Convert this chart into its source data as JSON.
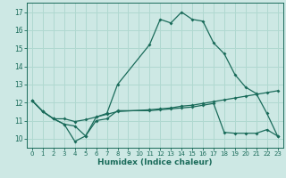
{
  "xlabel": "Humidex (Indice chaleur)",
  "bg_color": "#cde8e4",
  "grid_color": "#b0d8d0",
  "line_color": "#1a6b5a",
  "xlim": [
    -0.5,
    23.5
  ],
  "ylim": [
    9.5,
    17.5
  ],
  "yticks": [
    10,
    11,
    12,
    13,
    14,
    15,
    16,
    17
  ],
  "xticks": [
    0,
    1,
    2,
    3,
    4,
    5,
    6,
    7,
    8,
    9,
    10,
    11,
    12,
    13,
    14,
    15,
    16,
    17,
    18,
    19,
    20,
    21,
    22,
    23
  ],
  "line1_x": [
    0,
    1,
    2,
    3,
    4,
    5,
    6,
    7,
    8,
    11,
    12,
    13,
    14,
    15,
    16,
    17,
    18,
    19,
    20,
    21,
    22,
    23
  ],
  "line1_y": [
    12.1,
    11.5,
    11.1,
    10.8,
    10.7,
    10.15,
    11.2,
    11.4,
    13.0,
    15.2,
    16.6,
    16.4,
    17.0,
    16.6,
    16.5,
    15.3,
    14.7,
    13.55,
    12.85,
    12.5,
    11.4,
    10.15
  ],
  "line2_x": [
    0,
    1,
    2,
    3,
    4,
    5,
    6,
    7,
    8,
    11,
    12,
    13,
    14,
    15,
    16,
    17,
    18,
    19,
    20,
    21,
    22,
    23
  ],
  "line2_y": [
    12.1,
    11.5,
    11.1,
    10.8,
    9.85,
    10.15,
    11.0,
    11.1,
    11.55,
    11.55,
    11.6,
    11.65,
    11.7,
    11.75,
    11.85,
    11.95,
    10.35,
    10.3,
    10.3,
    10.3,
    10.5,
    10.15
  ],
  "line3_x": [
    0,
    1,
    2,
    3,
    4,
    5,
    6,
    7,
    8,
    11,
    12,
    13,
    14,
    15,
    16,
    17,
    18,
    19,
    20,
    21,
    22,
    23
  ],
  "line3_y": [
    12.1,
    11.5,
    11.1,
    11.1,
    10.95,
    11.05,
    11.2,
    11.35,
    11.5,
    11.6,
    11.65,
    11.7,
    11.8,
    11.85,
    11.95,
    12.05,
    12.15,
    12.25,
    12.35,
    12.45,
    12.55,
    12.65
  ]
}
